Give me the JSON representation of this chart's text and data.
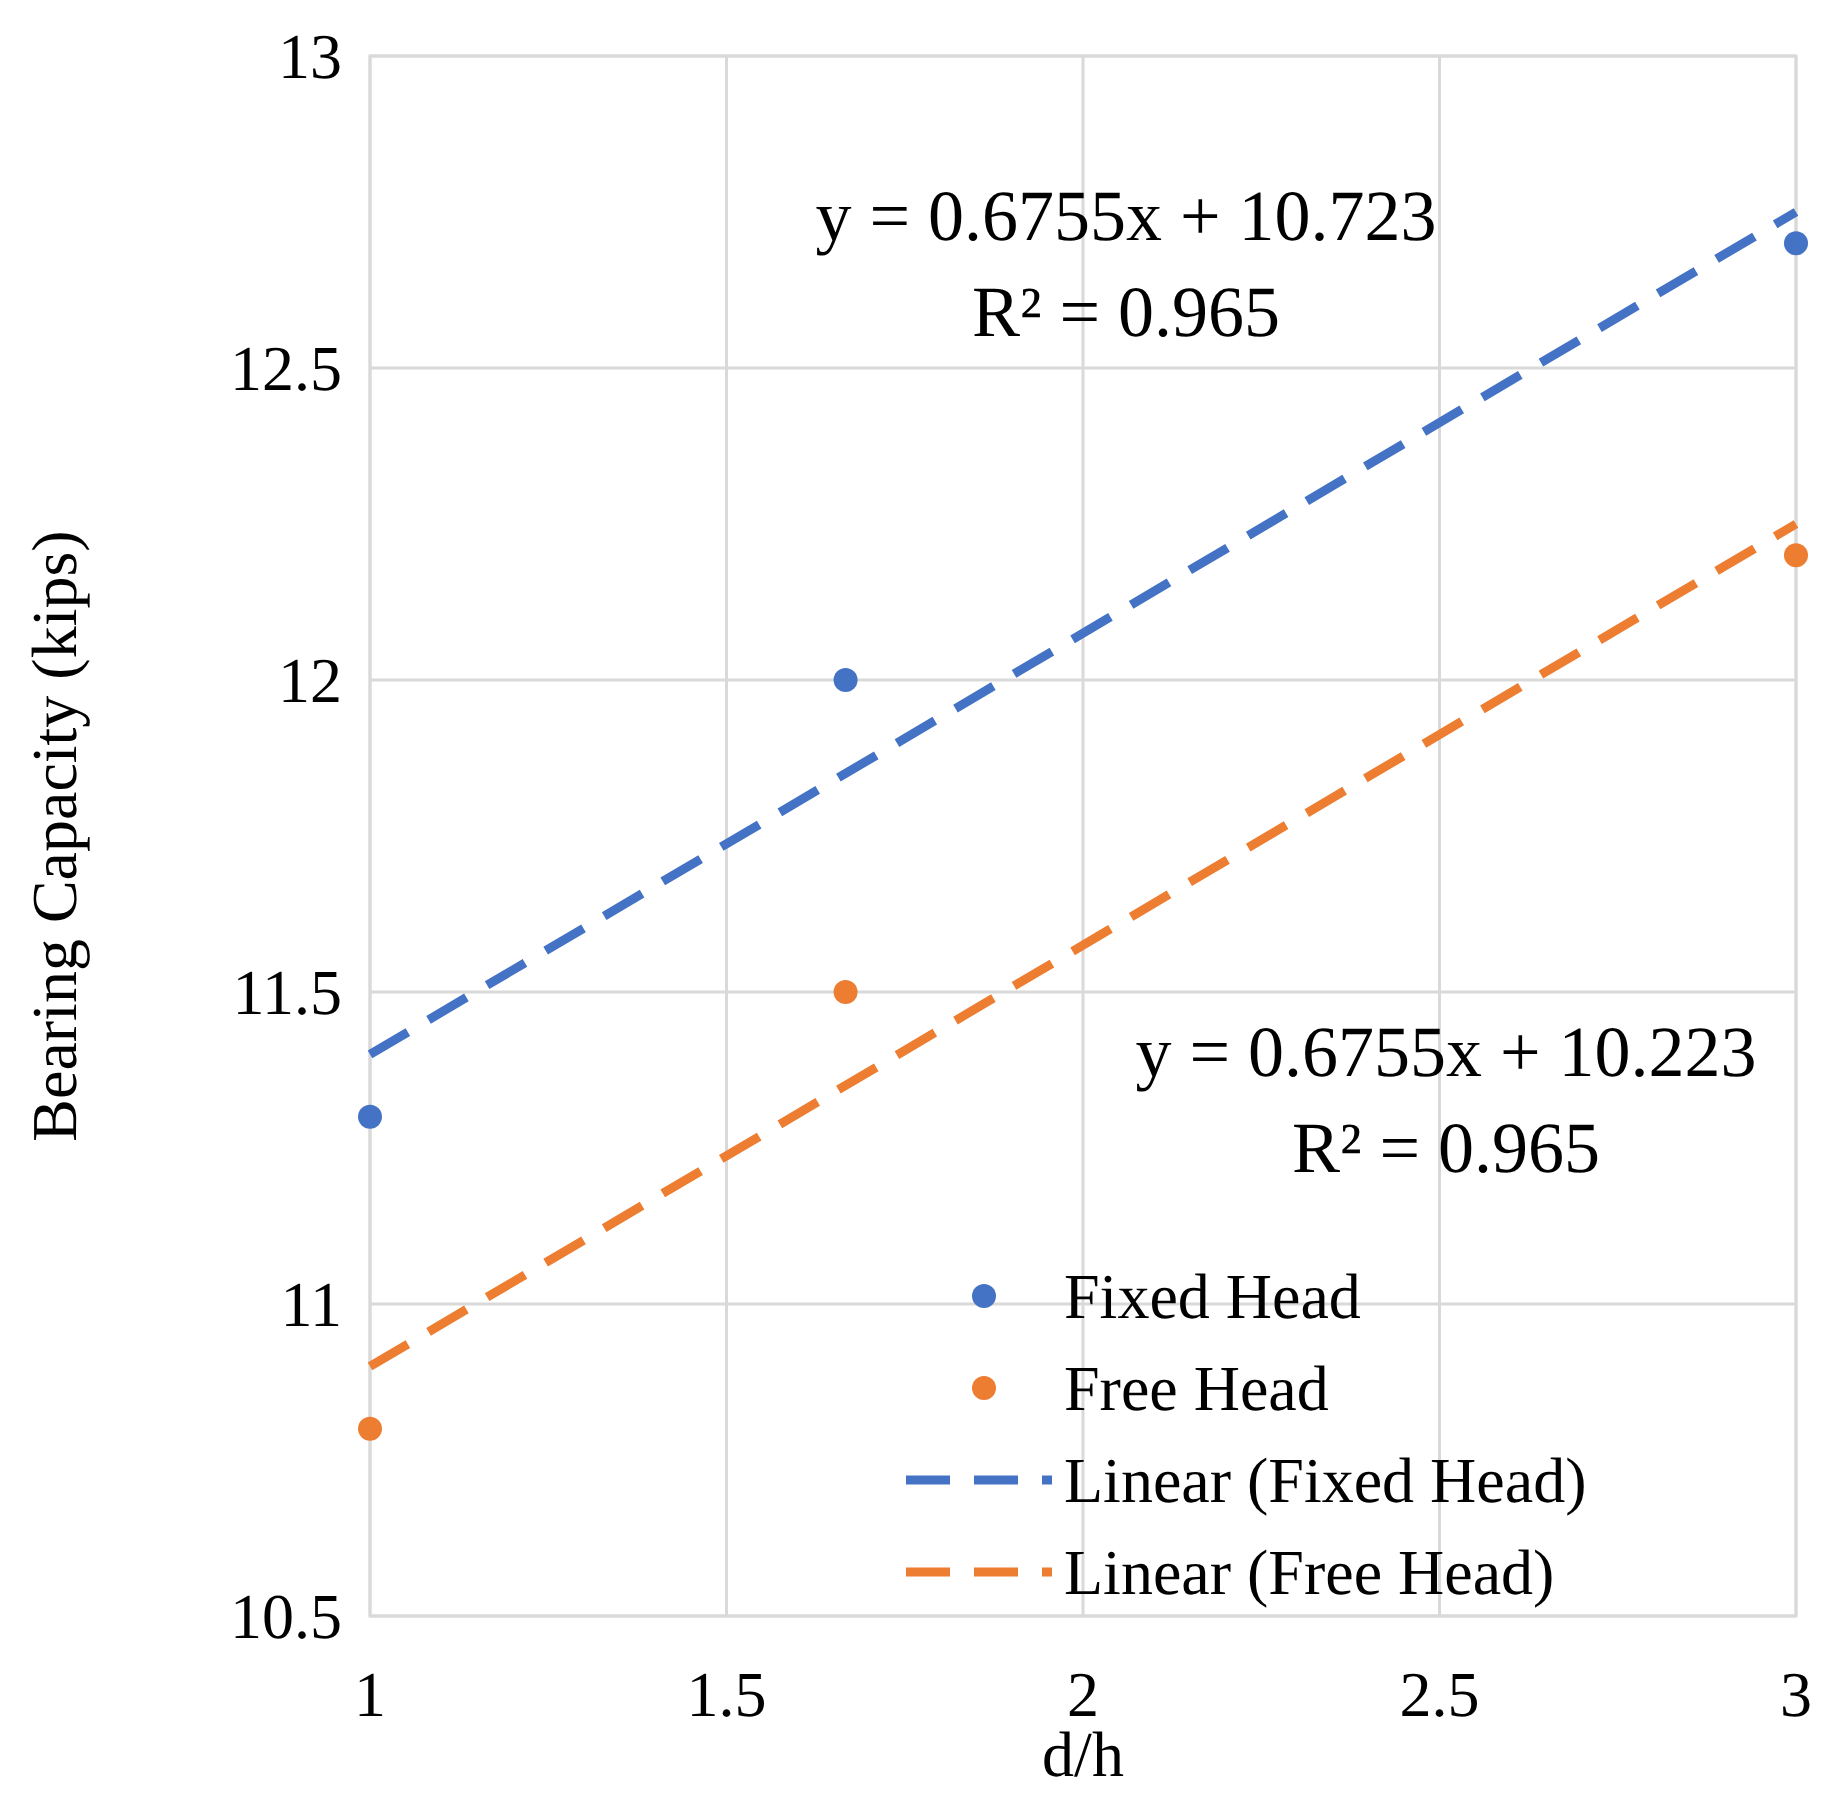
{
  "chart_data": {
    "type": "scatter",
    "xlabel": "d/h",
    "ylabel": "Bearing Capacity (kips)",
    "xlim": [
      1,
      3
    ],
    "xticks": [
      1,
      1.5,
      2,
      2.5,
      3
    ],
    "ylim": [
      10.5,
      13
    ],
    "yticks": [
      10.5,
      11,
      11.5,
      12,
      12.5,
      13
    ],
    "grid": true,
    "legend": "bottom right",
    "marker": "circle",
    "series": [
      {
        "name": "Fixed Head",
        "color": "#4472c4",
        "x": [
          1,
          1.667,
          3
        ],
        "values": [
          11.3,
          12.0,
          12.7
        ]
      },
      {
        "name": "Free Head",
        "color": "#ed7d31",
        "x": [
          1,
          1.667,
          3
        ],
        "values": [
          10.8,
          11.5,
          12.2
        ]
      },
      {
        "name": "Linear (Fixed Head)",
        "type": "line",
        "color": "#4472c4",
        "line_style": "dashed",
        "marker": "none",
        "x": [
          1,
          3
        ],
        "values": [
          11.4,
          12.75
        ]
      },
      {
        "name": "Linear (Free Head)",
        "type": "line",
        "color": "#ed7d31",
        "line_style": "dashed",
        "marker": "none",
        "x": [
          1,
          3
        ],
        "values": [
          10.9,
          12.25
        ]
      }
    ],
    "annotations": [
      "y = 0.6755x + 10.723",
      "R² = 0.965",
      "y = 0.6755x + 10.223",
      "R² = 0.965"
    ]
  }
}
